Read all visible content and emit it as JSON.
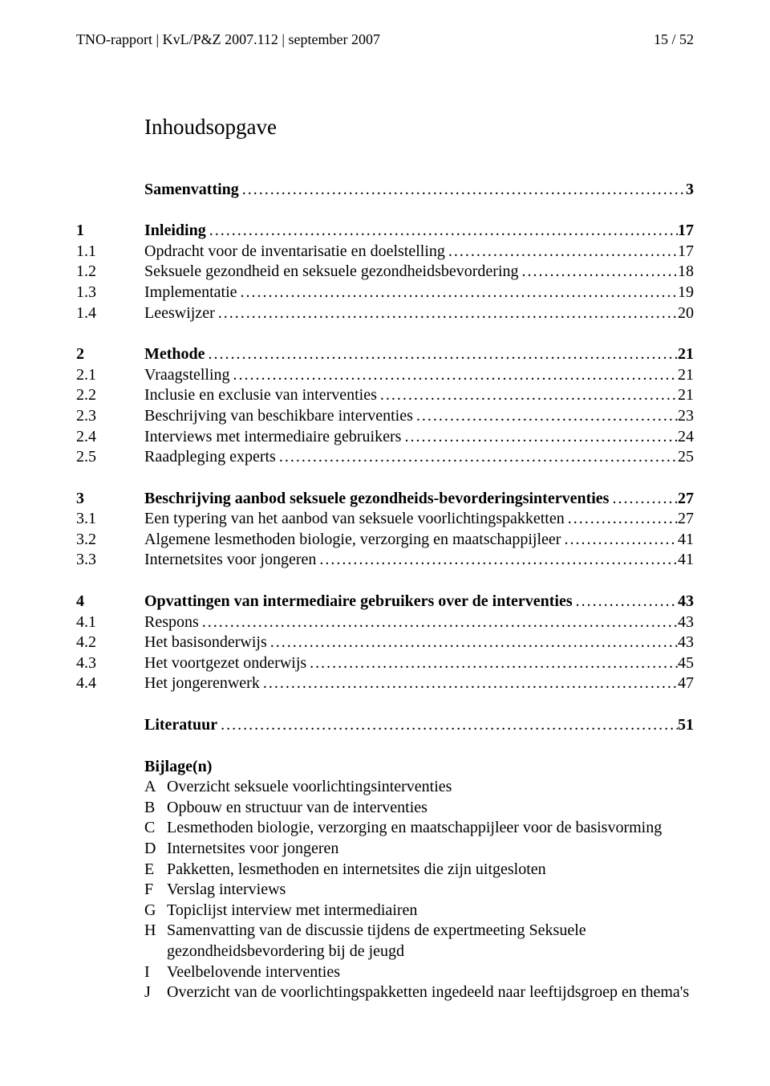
{
  "header": {
    "left": "TNO-rapport | KvL/P&Z 2007.112 | september 2007",
    "right": "15 / 52"
  },
  "title": "Inhoudsopgave",
  "dots": "......................................................................................................................................................................................................................................",
  "toc": [
    [
      {
        "num": "",
        "text": "Samenvatting",
        "page": "3",
        "bold": true
      }
    ],
    [
      {
        "num": "1",
        "text": "Inleiding",
        "page": "17",
        "bold": true
      },
      {
        "num": "1.1",
        "text": "Opdracht voor de inventarisatie en doelstelling",
        "page": "17",
        "bold": false
      },
      {
        "num": "1.2",
        "text": "Seksuele gezondheid en seksuele gezondheidsbevordering",
        "page": "18",
        "bold": false
      },
      {
        "num": "1.3",
        "text": "Implementatie",
        "page": "19",
        "bold": false
      },
      {
        "num": "1.4",
        "text": "Leeswijzer",
        "page": "20",
        "bold": false
      }
    ],
    [
      {
        "num": "2",
        "text": "Methode",
        "page": "21",
        "bold": true
      },
      {
        "num": "2.1",
        "text": "Vraagstelling",
        "page": "21",
        "bold": false
      },
      {
        "num": "2.2",
        "text": "Inclusie en exclusie van interventies",
        "page": "21",
        "bold": false
      },
      {
        "num": "2.3",
        "text": "Beschrijving van beschikbare interventies",
        "page": "23",
        "bold": false
      },
      {
        "num": "2.4",
        "text": "Interviews met intermediaire gebruikers",
        "page": "24",
        "bold": false
      },
      {
        "num": "2.5",
        "text": "Raadpleging experts",
        "page": "25",
        "bold": false
      }
    ],
    [
      {
        "num": "3",
        "text": "Beschrijving aanbod seksuele gezondheids-bevorderingsinterventies",
        "page": "27",
        "bold": true
      },
      {
        "num": "3.1",
        "text": "Een typering van het aanbod van seksuele voorlichtingspakketten",
        "page": "27",
        "bold": false
      },
      {
        "num": "3.2",
        "text": "Algemene lesmethoden biologie, verzorging en maatschappijleer",
        "page": "41",
        "bold": false
      },
      {
        "num": "3.3",
        "text": "Internetsites voor jongeren",
        "page": "41",
        "bold": false
      }
    ],
    [
      {
        "num": "4",
        "text": "Opvattingen van intermediaire gebruikers over de interventies",
        "page": "43",
        "bold": true
      },
      {
        "num": "4.1",
        "text": "Respons",
        "page": "43",
        "bold": false
      },
      {
        "num": "4.2",
        "text": "Het basisonderwijs",
        "page": "43",
        "bold": false
      },
      {
        "num": "4.3",
        "text": "Het voortgezet onderwijs",
        "page": "45",
        "bold": false
      },
      {
        "num": "4.4",
        "text": "Het jongerenwerk",
        "page": "47",
        "bold": false
      }
    ],
    [
      {
        "num": "",
        "text": "Literatuur",
        "page": "51",
        "bold": true
      }
    ]
  ],
  "bijlagen": {
    "title": "Bijlage(n)",
    "items": [
      {
        "letter": "A",
        "text": "Overzicht seksuele voorlichtingsinterventies"
      },
      {
        "letter": "B",
        "text": "Opbouw en structuur van de interventies"
      },
      {
        "letter": "C",
        "text": "Lesmethoden biologie, verzorging en maatschappijleer voor de basisvorming"
      },
      {
        "letter": "D",
        "text": "Internetsites voor jongeren"
      },
      {
        "letter": "E",
        "text": "Pakketten, lesmethoden en internetsites die zijn uitgesloten"
      },
      {
        "letter": "F",
        "text": "Verslag interviews"
      },
      {
        "letter": "G",
        "text": "Topiclijst interview met intermediairen"
      },
      {
        "letter": "H",
        "text": "Samenvatting van de discussie tijdens de expertmeeting Seksuele gezondheidsbevordering bij de jeugd"
      },
      {
        "letter": "I",
        "text": "Veelbelovende interventies"
      },
      {
        "letter": "J",
        "text": "Overzicht van de voorlichtingspakketten ingedeeld naar leeftijdsgroep en thema's"
      }
    ]
  }
}
